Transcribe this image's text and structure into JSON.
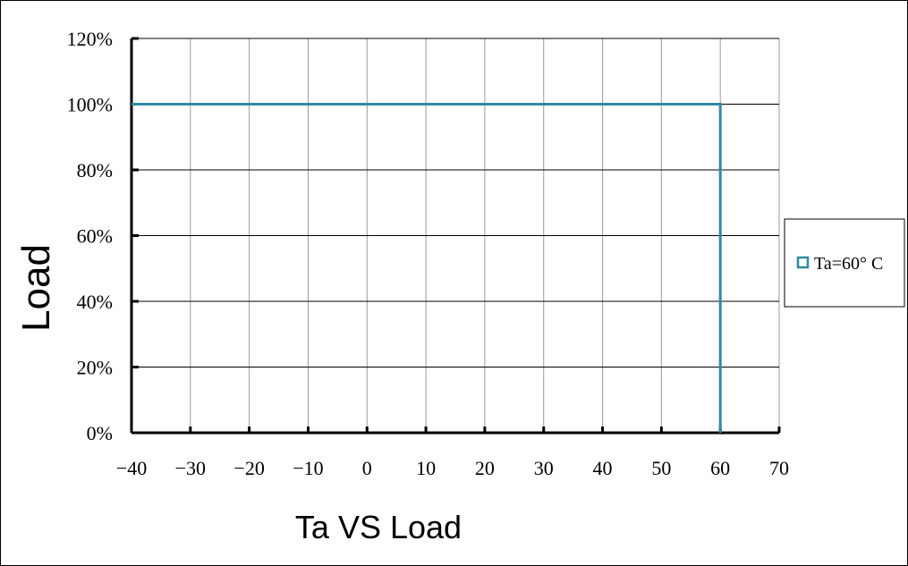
{
  "chart_data": {
    "type": "line",
    "title": "",
    "xlabel": "Ta VS Load",
    "ylabel": "Load",
    "xlim": [
      -40,
      70
    ],
    "ylim": [
      0,
      120
    ],
    "x_ticks": [
      -40,
      -30,
      -20,
      -10,
      0,
      10,
      20,
      30,
      40,
      50,
      60,
      70
    ],
    "x_tick_labels": [
      "−40",
      "−30",
      "−20",
      "−10",
      "0",
      "10",
      "20",
      "30",
      "40",
      "50",
      "60",
      "70"
    ],
    "y_ticks": [
      0,
      20,
      40,
      60,
      80,
      100,
      120
    ],
    "y_tick_labels": [
      "0%",
      "20%",
      "40%",
      "60%",
      "80%",
      "100%",
      "120%"
    ],
    "grid": true,
    "legend_position": "right",
    "series": [
      {
        "name": "Ta=60° C",
        "color": "#2f8aa3",
        "x": [
          -40,
          60,
          60
        ],
        "y": [
          100,
          100,
          0
        ]
      }
    ]
  }
}
